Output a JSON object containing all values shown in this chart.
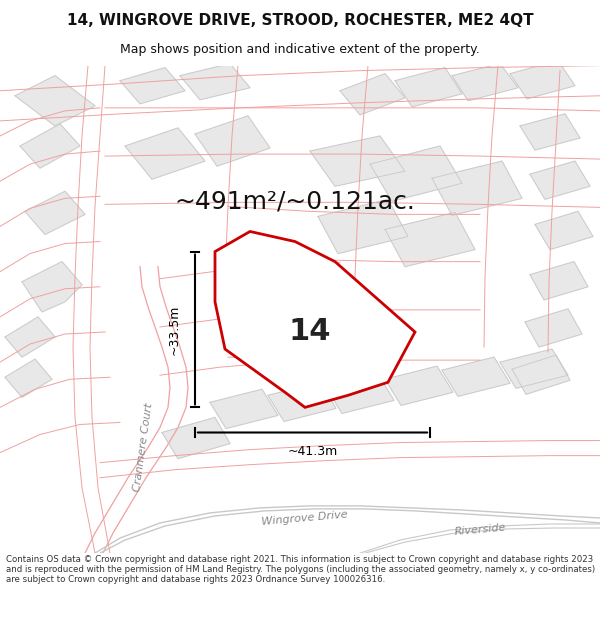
{
  "title": "14, WINGROVE DRIVE, STROOD, ROCHESTER, ME2 4QT",
  "subtitle": "Map shows position and indicative extent of the property.",
  "footer": "Contains OS data © Crown copyright and database right 2021. This information is subject to Crown copyright and database rights 2023 and is reproduced with the permission of HM Land Registry. The polygons (including the associated geometry, namely x, y co-ordinates) are subject to Crown copyright and database rights 2023 Ordnance Survey 100026316.",
  "area_label": "~491m²/~0.121ac.",
  "dim_width": "~41.3m",
  "dim_height": "~33.5m",
  "plot_number": "14",
  "map_bg": "#ffffff",
  "plot_fill": "#ffffff",
  "plot_edge": "#cc0000",
  "building_fill": "#e8e8e8",
  "building_edge": "#c8c8c8",
  "road_line_color": "#f0a0a0",
  "plot_line_color": "#e8a0a0",
  "dim_color": "#111111",
  "title_color": "#111111",
  "footer_color": "#333333",
  "street_label_color": "#888888",
  "title_fontsize": 11,
  "subtitle_fontsize": 9,
  "area_fontsize": 18,
  "plot_num_fontsize": 22,
  "dim_fontsize": 9,
  "street_fontsize": 8,
  "footer_fontsize": 6.2
}
